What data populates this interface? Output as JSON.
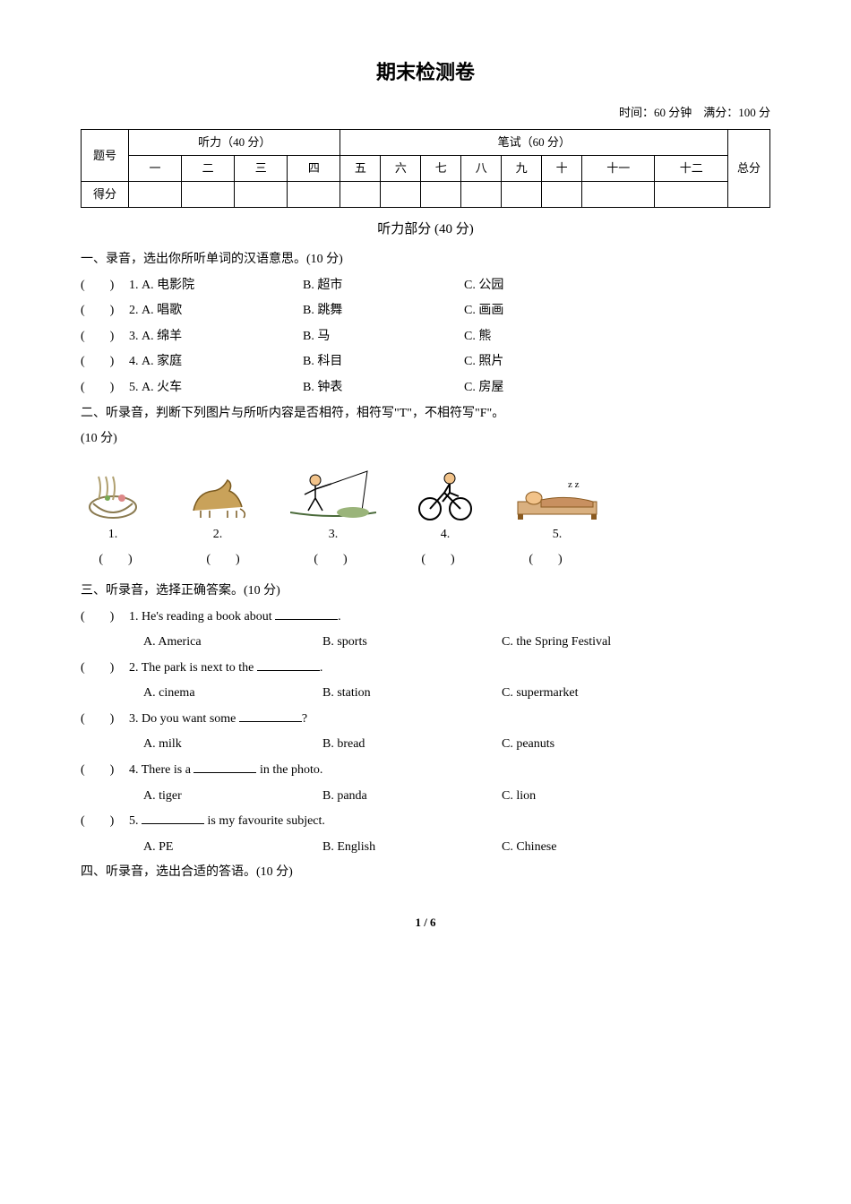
{
  "title": "期末检测卷",
  "meta": "时间：60 分钟　满分：100 分",
  "scoreTable": {
    "listeningHeader": "听力（40 分）",
    "writtenHeader": "笔试（60 分）",
    "totalHeader": "总分",
    "rowLabel1": "题号",
    "rowLabel2": "得分",
    "cols": [
      "一",
      "二",
      "三",
      "四",
      "五",
      "六",
      "七",
      "八",
      "九",
      "十",
      "十一",
      "十二"
    ]
  },
  "listening": {
    "header": "听力部分 (40 分)",
    "sec1": {
      "title": "一、录音，选出你所听单词的汉语意思。(10 分)",
      "items": [
        {
          "n": "1",
          "A": "电影院",
          "B": "超市",
          "C": "公园"
        },
        {
          "n": "2",
          "A": "唱歌",
          "B": "跳舞",
          "C": "画画"
        },
        {
          "n": "3",
          "A": "绵羊",
          "B": "马",
          "C": "熊"
        },
        {
          "n": "4",
          "A": "家庭",
          "B": "科目",
          "C": "照片"
        },
        {
          "n": "5",
          "A": "火车",
          "B": "钟表",
          "C": "房屋"
        }
      ]
    },
    "sec2": {
      "title": "二、听录音，判断下列图片与所听内容是否相符，相符写\"T\"，不相符写\"F\"。",
      "points": "(10 分)",
      "nums": [
        "1.",
        "2.",
        "3.",
        "4.",
        "5."
      ],
      "paren": "(　　)"
    },
    "sec3": {
      "title": "三、听录音，选择正确答案。(10 分)",
      "items": [
        {
          "n": "1",
          "stem_pre": "He's reading a book about ",
          "stem_post": ".",
          "A": "America",
          "B": "sports",
          "C": "the Spring Festival"
        },
        {
          "n": "2",
          "stem_pre": "The park is next to the ",
          "stem_post": ".",
          "A": "cinema",
          "B": "station",
          "C": "supermarket"
        },
        {
          "n": "3",
          "stem_pre": "Do you want some ",
          "stem_post": "?",
          "A": "milk",
          "B": "bread",
          "C": "peanuts"
        },
        {
          "n": "4",
          "stem_pre": "There is a ",
          "stem_post": " in the photo.",
          "A": "tiger",
          "B": "panda",
          "C": "lion"
        },
        {
          "n": "5",
          "stem_pre": "",
          "stem_post": " is my favourite subject.",
          "A": "PE",
          "B": "English",
          "C": "Chinese"
        }
      ]
    },
    "sec4": {
      "title": "四、听录音，选出合适的答语。(10 分)"
    }
  },
  "pager": "1 / 6",
  "icons": {
    "bowl_color": "#b0a070",
    "horse_color": "#c9a25a",
    "fish_color": "#5a7a3a",
    "bike_color": "#000000",
    "sleep_color": "#c89060"
  }
}
